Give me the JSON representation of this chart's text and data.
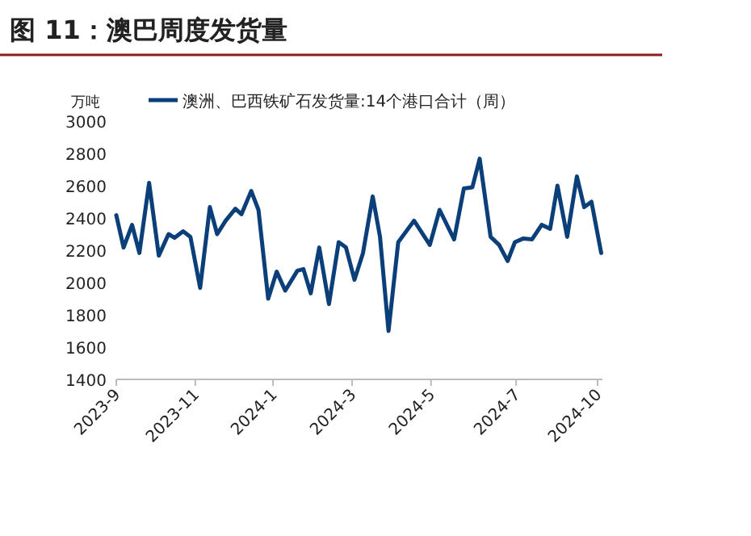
{
  "chart_data": {
    "type": "line",
    "title": "图 11：澳巴周度发货量",
    "ylabel": "万吨",
    "legend": "top",
    "x": [
      "2023-09-01",
      "2023-09-07",
      "2023-09-14",
      "2023-09-20",
      "2023-09-28",
      "2023-10-06",
      "2023-10-14",
      "2023-10-19",
      "2023-10-26",
      "2023-11-01",
      "2023-11-09",
      "2023-11-17",
      "2023-11-23",
      "2023-11-30",
      "2023-12-08",
      "2023-12-13",
      "2023-12-21",
      "2023-12-27",
      "2024-01-04",
      "2024-01-11",
      "2024-01-18",
      "2024-01-28",
      "2024-02-02",
      "2024-02-08",
      "2024-02-15",
      "2024-02-23",
      "2024-03-02",
      "2024-03-08",
      "2024-03-15",
      "2024-03-22",
      "2024-03-30",
      "2024-04-05",
      "2024-04-12",
      "2024-04-20",
      "2024-05-03",
      "2024-05-16",
      "2024-05-24",
      "2024-06-05",
      "2024-06-13",
      "2024-06-20",
      "2024-06-26",
      "2024-07-05",
      "2024-07-12",
      "2024-07-19",
      "2024-07-25",
      "2024-08-01",
      "2024-08-08",
      "2024-08-16",
      "2024-08-23",
      "2024-08-29",
      "2024-09-06",
      "2024-09-14",
      "2024-09-20",
      "2024-09-26",
      "2024-10-04"
    ],
    "series": [
      {
        "name": "澳洲、巴西铁矿石发货量:14个港口合计（周）",
        "color": "#0b3f7a",
        "values": [
          2417,
          2217,
          2357,
          2183,
          2617,
          2167,
          2300,
          2277,
          2317,
          2283,
          1967,
          2467,
          2300,
          2383,
          2457,
          2423,
          2567,
          2450,
          1900,
          2067,
          1950,
          2073,
          2083,
          1933,
          2217,
          1867,
          2250,
          2217,
          2017,
          2183,
          2533,
          2283,
          1700,
          2250,
          2383,
          2233,
          2450,
          2267,
          2583,
          2590,
          2767,
          2283,
          2233,
          2133,
          2250,
          2273,
          2267,
          2357,
          2333,
          2600,
          2283,
          2657,
          2467,
          2500,
          2183
        ]
      }
    ],
    "xlim": [
      "2023-09-01",
      "2024-10-05"
    ],
    "xticks": [
      {
        "value": "2023-09-01",
        "label": "2023-9"
      },
      {
        "value": "2023-11-05",
        "label": "2023-11"
      },
      {
        "value": "2024-01-08",
        "label": "2024-1"
      },
      {
        "value": "2024-03-13",
        "label": "2024-3"
      },
      {
        "value": "2024-05-17",
        "label": "2024-5"
      },
      {
        "value": "2024-07-26",
        "label": "2024-7"
      },
      {
        "value": "2024-10-01",
        "label": "2024-10"
      }
    ],
    "ylim": [
      1400,
      3000
    ],
    "yticks": [
      1400,
      1600,
      1800,
      2000,
      2200,
      2400,
      2600,
      2800,
      3000
    ]
  }
}
